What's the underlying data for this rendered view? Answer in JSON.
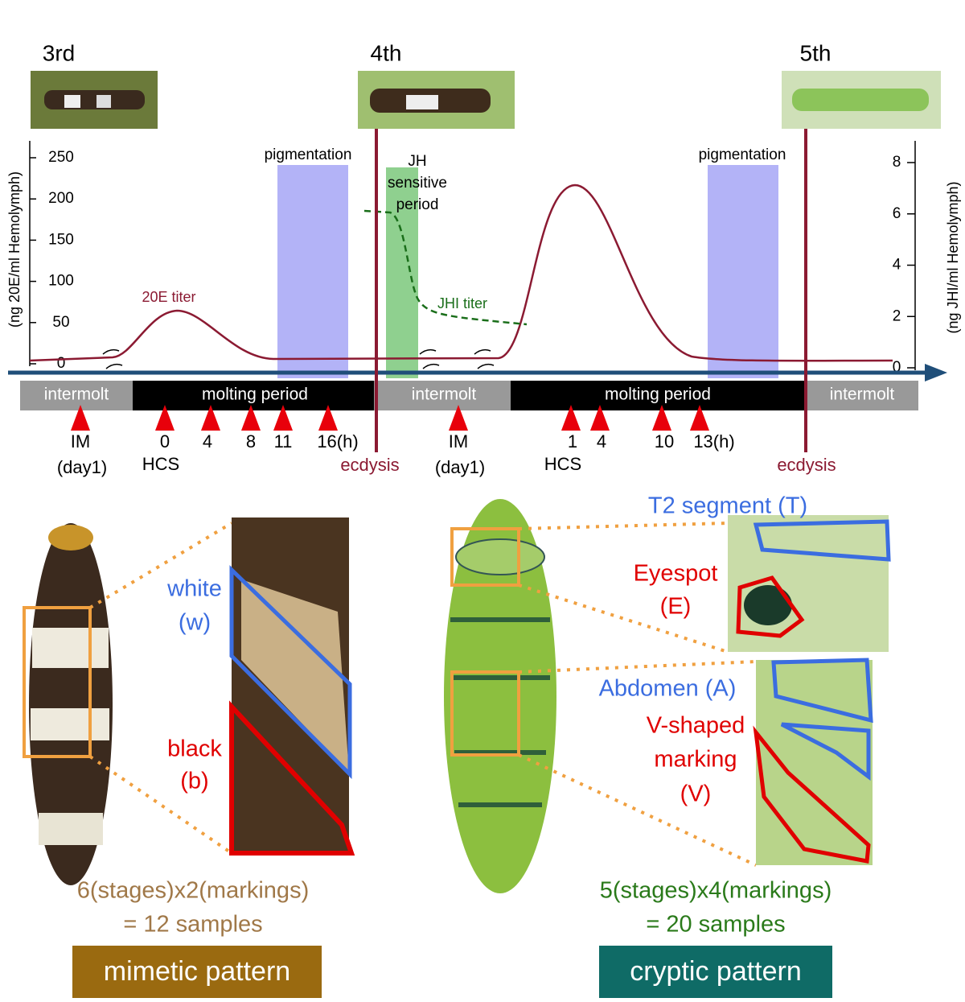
{
  "stages": [
    "3rd",
    "4th",
    "5th"
  ],
  "left_axis": {
    "label": "(ng 20E/ml Hemolymph)",
    "ticks": [
      0,
      50,
      100,
      150,
      200,
      250
    ]
  },
  "right_axis": {
    "label": "(ng JHI/ml Hemolymph)",
    "ticks": [
      0,
      2,
      4,
      6,
      8
    ]
  },
  "curves": {
    "e20": "20E titer",
    "jhi": "JHI titer"
  },
  "periods": {
    "pigmentation_1": "pigmentation",
    "pigmentation_2": "pigmentation",
    "jh_sensitive": [
      "JH",
      "sensitive",
      "period"
    ]
  },
  "timeline": [
    "intermolt",
    "molting period",
    "intermolt",
    "molting period",
    "intermolt"
  ],
  "timepoints": [
    "IM",
    "(day1)",
    "0",
    "HCS",
    "4",
    "8",
    "11",
    "16(h)",
    "ecdysis",
    "IM",
    "(day1)",
    "1",
    "HCS",
    "4",
    "10",
    "13(h)",
    "ecdysis"
  ],
  "mimetic": {
    "labels": [
      "white",
      "(w)",
      "black",
      "(b)"
    ],
    "count": [
      "6(stages)x2(markings)",
      "= 12 samples"
    ],
    "title": "mimetic pattern"
  },
  "cryptic": {
    "labels": [
      "T2 segment (T)",
      "Eyespot",
      "(E)",
      "Abdomen (A)",
      "V-shaped",
      "marking",
      "(V)"
    ],
    "count": [
      "5(stages)x4(markings)",
      "= 20 samples"
    ],
    "title": "cryptic pattern"
  }
}
